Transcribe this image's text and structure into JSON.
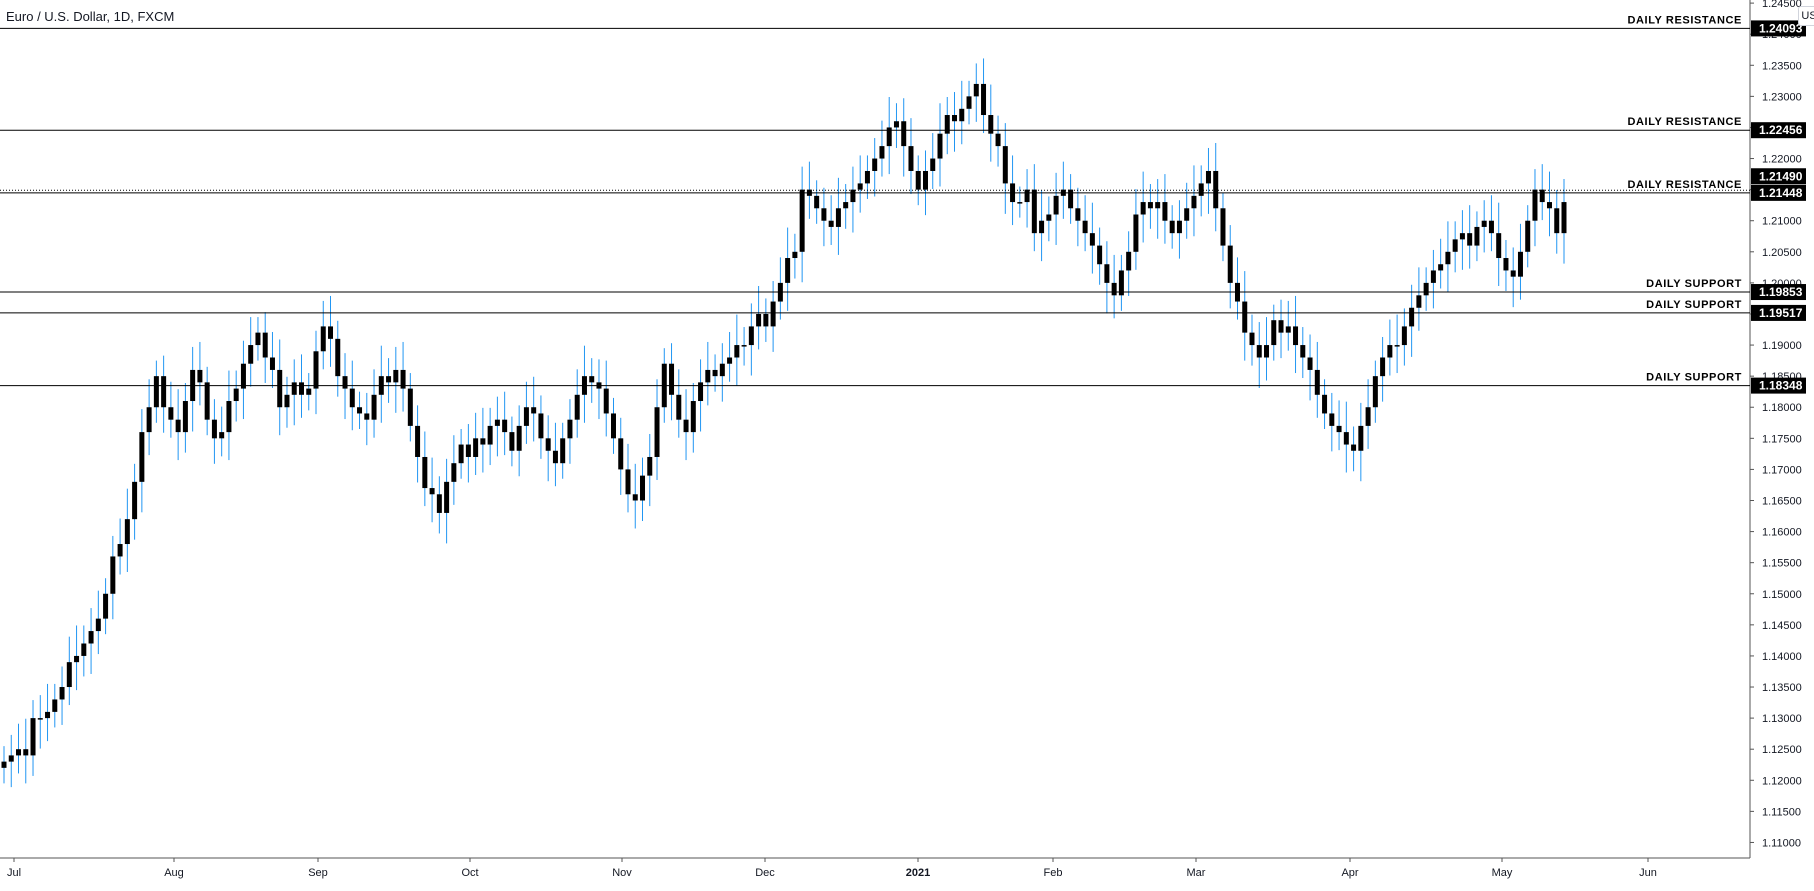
{
  "header": {
    "title": "Euro / U.S. Dollar, 1D, FXCM",
    "currency_button": "USD"
  },
  "colors": {
    "up_wick": "#2196f3",
    "body": "#000000",
    "level_line": "#000000",
    "label_bg": "#000000",
    "label_text": "#ffffff",
    "axis_text": "#131722"
  },
  "chart_data": {
    "type": "candlestick",
    "title": "Euro / U.S. Dollar, 1D, FXCM",
    "x_tick_labels": [
      "Jul",
      "Aug",
      "Sep",
      "Oct",
      "Nov",
      "Dec",
      "2021",
      "Feb",
      "Mar",
      "Apr",
      "May",
      "Jun"
    ],
    "y_range": [
      1.1075,
      1.2455
    ],
    "y_ticks": [
      "1.11000",
      "1.11500",
      "1.12000",
      "1.12500",
      "1.13000",
      "1.13500",
      "1.14000",
      "1.14500",
      "1.15000",
      "1.15500",
      "1.16000",
      "1.16500",
      "1.17000",
      "1.17500",
      "1.18000",
      "1.18500",
      "1.19000",
      "1.19500",
      "1.20000",
      "1.20500",
      "1.21000",
      "1.21500",
      "1.22000",
      "1.22500",
      "1.23000",
      "1.23500",
      "1.24000",
      "1.24500"
    ],
    "levels": [
      {
        "label": "DAILY RESISTANCE",
        "value": 1.24093,
        "value_label": "1.24093",
        "style": "solid"
      },
      {
        "label": "DAILY RESISTANCE",
        "value": 1.22456,
        "value_label": "1.22456",
        "style": "solid"
      },
      {
        "label": "DAILY RESISTANCE",
        "value": 1.21448,
        "value_label": "1.21448",
        "style": "solid"
      },
      {
        "label": "",
        "value": 1.2149,
        "value_label": "1.21490",
        "style": "dotted"
      },
      {
        "label": "DAILY SUPPORT",
        "value": 1.19853,
        "value_label": "1.19853",
        "style": "solid"
      },
      {
        "label": "DAILY SUPPORT",
        "value": 1.19517,
        "value_label": "1.19517",
        "style": "solid"
      },
      {
        "label": "DAILY SUPPORT",
        "value": 1.18348,
        "value_label": "1.18348",
        "style": "solid"
      }
    ],
    "approx_close_series": [
      1.123,
      1.124,
      1.125,
      1.124,
      1.13,
      1.13,
      1.131,
      1.133,
      1.135,
      1.139,
      1.14,
      1.142,
      1.144,
      1.146,
      1.15,
      1.156,
      1.158,
      1.162,
      1.168,
      1.176,
      1.18,
      1.185,
      1.18,
      1.178,
      1.176,
      1.181,
      1.186,
      1.184,
      1.178,
      1.175,
      1.176,
      1.181,
      1.183,
      1.187,
      1.19,
      1.192,
      1.188,
      1.186,
      1.18,
      1.182,
      1.184,
      1.182,
      1.183,
      1.189,
      1.193,
      1.191,
      1.185,
      1.183,
      1.18,
      1.179,
      1.178,
      1.182,
      1.185,
      1.184,
      1.186,
      1.183,
      1.177,
      1.172,
      1.167,
      1.166,
      1.163,
      1.168,
      1.171,
      1.174,
      1.172,
      1.175,
      1.174,
      1.177,
      1.178,
      1.176,
      1.173,
      1.177,
      1.18,
      1.179,
      1.175,
      1.173,
      1.171,
      1.175,
      1.178,
      1.182,
      1.185,
      1.184,
      1.183,
      1.179,
      1.175,
      1.17,
      1.166,
      1.165,
      1.169,
      1.172,
      1.18,
      1.187,
      1.182,
      1.178,
      1.176,
      1.181,
      1.184,
      1.186,
      1.185,
      1.187,
      1.188,
      1.19,
      1.19,
      1.193,
      1.195,
      1.193,
      1.197,
      1.2,
      1.204,
      1.205,
      1.215,
      1.214,
      1.212,
      1.21,
      1.209,
      1.212,
      1.213,
      1.215,
      1.216,
      1.218,
      1.22,
      1.222,
      1.225,
      1.226,
      1.222,
      1.218,
      1.215,
      1.218,
      1.22,
      1.224,
      1.227,
      1.226,
      1.228,
      1.23,
      1.232,
      1.227,
      1.224,
      1.222,
      1.216,
      1.213,
      1.213,
      1.215,
      1.208,
      1.21,
      1.211,
      1.214,
      1.215,
      1.212,
      1.21,
      1.208,
      1.206,
      1.203,
      1.2,
      1.198,
      1.202,
      1.205,
      1.211,
      1.213,
      1.212,
      1.213,
      1.21,
      1.208,
      1.21,
      1.212,
      1.214,
      1.216,
      1.218,
      1.212,
      1.206,
      1.2,
      1.197,
      1.192,
      1.19,
      1.188,
      1.19,
      1.194,
      1.192,
      1.193,
      1.19,
      1.188,
      1.186,
      1.182,
      1.179,
      1.177,
      1.176,
      1.174,
      1.173,
      1.177,
      1.18,
      1.185,
      1.188,
      1.19,
      1.19,
      1.193,
      1.196,
      1.198,
      1.2,
      1.202,
      1.203,
      1.205,
      1.207,
      1.208,
      1.206,
      1.209,
      1.21,
      1.208,
      1.204,
      1.202,
      1.201,
      1.205,
      1.21,
      1.215,
      1.213,
      1.212,
      1.208,
      1.213
    ]
  }
}
